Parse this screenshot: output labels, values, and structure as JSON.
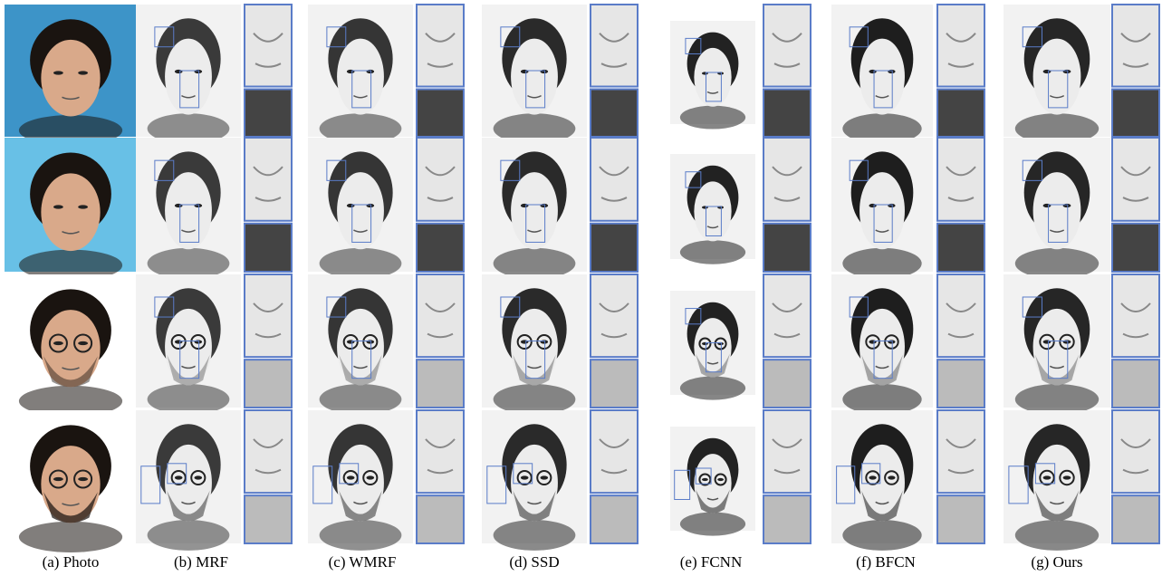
{
  "figure": {
    "captions": [
      "(a)  Photo",
      "(b)  MRF",
      "(c)  WMRF",
      "(d)  SSD",
      "(e)  FCNN",
      "(f)  BFCN",
      "(g)  Ours"
    ]
  }
}
